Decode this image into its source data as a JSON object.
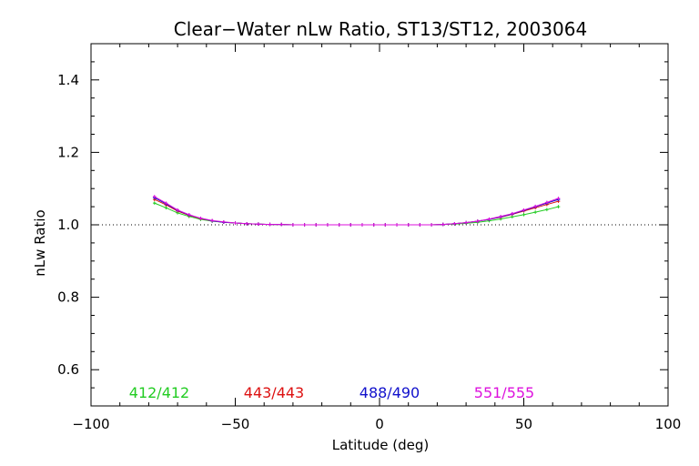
{
  "chart_data": {
    "type": "line",
    "title": "Clear−Water nLw Ratio, ST13/ST12, 2003064",
    "xlabel": "Latitude (deg)",
    "ylabel": "nLw Ratio",
    "xlim": [
      -100,
      100
    ],
    "ylim": [
      0.5,
      1.5
    ],
    "x_ticks": [
      -100,
      -50,
      0,
      50,
      100
    ],
    "x_tick_labels": [
      "−100",
      "−50",
      "0",
      "50",
      "100"
    ],
    "y_ticks": [
      0.6,
      0.8,
      1.0,
      1.2,
      1.4
    ],
    "y_tick_labels": [
      "0.6",
      "0.8",
      "1.0",
      "1.2",
      "1.4"
    ],
    "reference_line": {
      "y": 1.0,
      "style": "dotted"
    },
    "grid": false,
    "legend_position": "bottom-inside",
    "x": [
      -78,
      -74,
      -70,
      -66,
      -62,
      -58,
      -54,
      -50,
      -46,
      -42,
      -38,
      -34,
      -30,
      -26,
      -22,
      -18,
      -14,
      -10,
      -6,
      -2,
      2,
      6,
      10,
      14,
      18,
      22,
      26,
      30,
      34,
      38,
      42,
      46,
      50,
      54,
      58,
      62
    ],
    "series": [
      {
        "name": "412/412",
        "color": "#22cc22",
        "values": [
          1.06,
          1.047,
          1.033,
          1.023,
          1.015,
          1.01,
          1.007,
          1.005,
          1.003,
          1.002,
          1.001,
          1.001,
          1.0,
          1.0,
          1.0,
          1.0,
          1.0,
          1.0,
          1.0,
          1.0,
          1.0,
          1.0,
          1.0,
          1.0,
          1.0,
          1.001,
          1.002,
          1.004,
          1.007,
          1.011,
          1.016,
          1.022,
          1.028,
          1.035,
          1.042,
          1.05
        ]
      },
      {
        "name": "443/443",
        "color": "#dd1111",
        "values": [
          1.07,
          1.055,
          1.038,
          1.026,
          1.017,
          1.011,
          1.007,
          1.005,
          1.003,
          1.002,
          1.001,
          1.001,
          1.0,
          1.0,
          1.0,
          1.0,
          1.0,
          1.0,
          1.0,
          1.0,
          1.0,
          1.0,
          1.0,
          1.0,
          1.0,
          1.001,
          1.003,
          1.006,
          1.01,
          1.015,
          1.021,
          1.029,
          1.038,
          1.047,
          1.056,
          1.065
        ]
      },
      {
        "name": "488/490",
        "color": "#1111cc",
        "values": [
          1.075,
          1.058,
          1.04,
          1.027,
          1.018,
          1.011,
          1.007,
          1.005,
          1.003,
          1.002,
          1.001,
          1.001,
          1.0,
          1.0,
          1.0,
          1.0,
          1.0,
          1.0,
          1.0,
          1.0,
          1.0,
          1.0,
          1.0,
          1.0,
          1.0,
          1.001,
          1.003,
          1.006,
          1.01,
          1.015,
          1.022,
          1.03,
          1.04,
          1.05,
          1.06,
          1.07
        ]
      },
      {
        "name": "551/555",
        "color": "#dd11dd",
        "values": [
          1.078,
          1.06,
          1.041,
          1.028,
          1.018,
          1.012,
          1.008,
          1.005,
          1.003,
          1.002,
          1.001,
          1.001,
          1.0,
          1.0,
          1.0,
          1.0,
          1.0,
          1.0,
          1.0,
          1.0,
          1.0,
          1.0,
          1.0,
          1.0,
          1.0,
          1.001,
          1.003,
          1.006,
          1.01,
          1.016,
          1.023,
          1.031,
          1.041,
          1.051,
          1.062,
          1.073
        ]
      }
    ]
  }
}
